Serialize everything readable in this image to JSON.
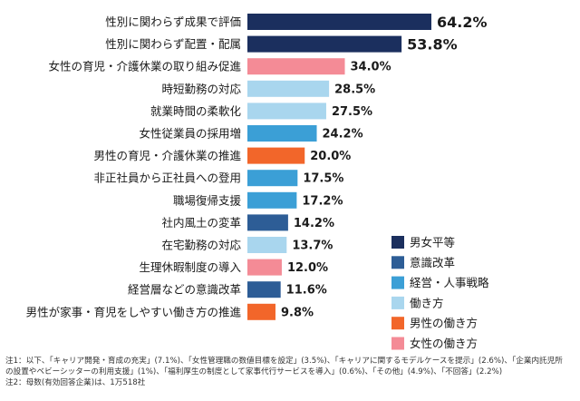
{
  "chart_data": {
    "type": "bar",
    "orientation": "horizontal",
    "categories": [
      "性別に関わらず成果で評価",
      "性別に関わらず配置・配属",
      "女性の育児・介護休業の取り組み促進",
      "時短勤務の対応",
      "就業時間の柔軟化",
      "女性従業員の採用増",
      "男性の育児・介護休業の推進",
      "非正社員から正社員への登用",
      "職場復帰支援",
      "社内風土の変革",
      "在宅勤務の対応",
      "生理休暇制度の導入",
      "経営層などの意識改革",
      "男性が家事・育児をしやすい働き方の推進"
    ],
    "values": [
      64.2,
      53.8,
      34.0,
      28.5,
      27.5,
      24.2,
      20.0,
      17.5,
      17.2,
      14.2,
      13.7,
      12.0,
      11.6,
      9.8
    ],
    "value_labels": [
      "64.2%",
      "53.8%",
      "34.0%",
      "28.5%",
      "27.5%",
      "24.2%",
      "20.0%",
      "17.5%",
      "17.2%",
      "14.2%",
      "13.7%",
      "12.0%",
      "11.6%",
      "9.8%"
    ],
    "groups": [
      "gender_equal",
      "gender_equal",
      "women_work",
      "work_style",
      "work_style",
      "management",
      "men_work",
      "management",
      "management",
      "awareness",
      "work_style",
      "women_work",
      "awareness",
      "men_work"
    ],
    "legend": [
      {
        "key": "gender_equal",
        "label": "男女平等",
        "color": "#1b2f5e"
      },
      {
        "key": "awareness",
        "label": "意識改革",
        "color": "#2d5d96"
      },
      {
        "key": "management",
        "label": "経営・人事戦略",
        "color": "#3b9fd6"
      },
      {
        "key": "work_style",
        "label": "働き方",
        "color": "#a9d6ee"
      },
      {
        "key": "men_work",
        "label": "男性の働き方",
        "color": "#f2662a"
      },
      {
        "key": "women_work",
        "label": "女性の働き方",
        "color": "#f48b96"
      }
    ],
    "legend_placement": "bottom-right",
    "xlim": [
      0,
      64.2
    ],
    "grid": false
  },
  "notes": [
    "注1：以下、「キャリア開発・育成の充実」(7.1%)、「女性管理職の数値目標を設定」(3.5%)、「キャリアに関するモデルケースを提示」(2.6%)、「企業内託児所",
    "の設置やベビーシッターの利用支援」(1%)、「福利厚生の制度として家事代行サービスを導入」(0.6%)、「その他」(4.9%)、「不回答」(2.2%)",
    "注2：母数(有効回答企業)は、1万518社"
  ]
}
